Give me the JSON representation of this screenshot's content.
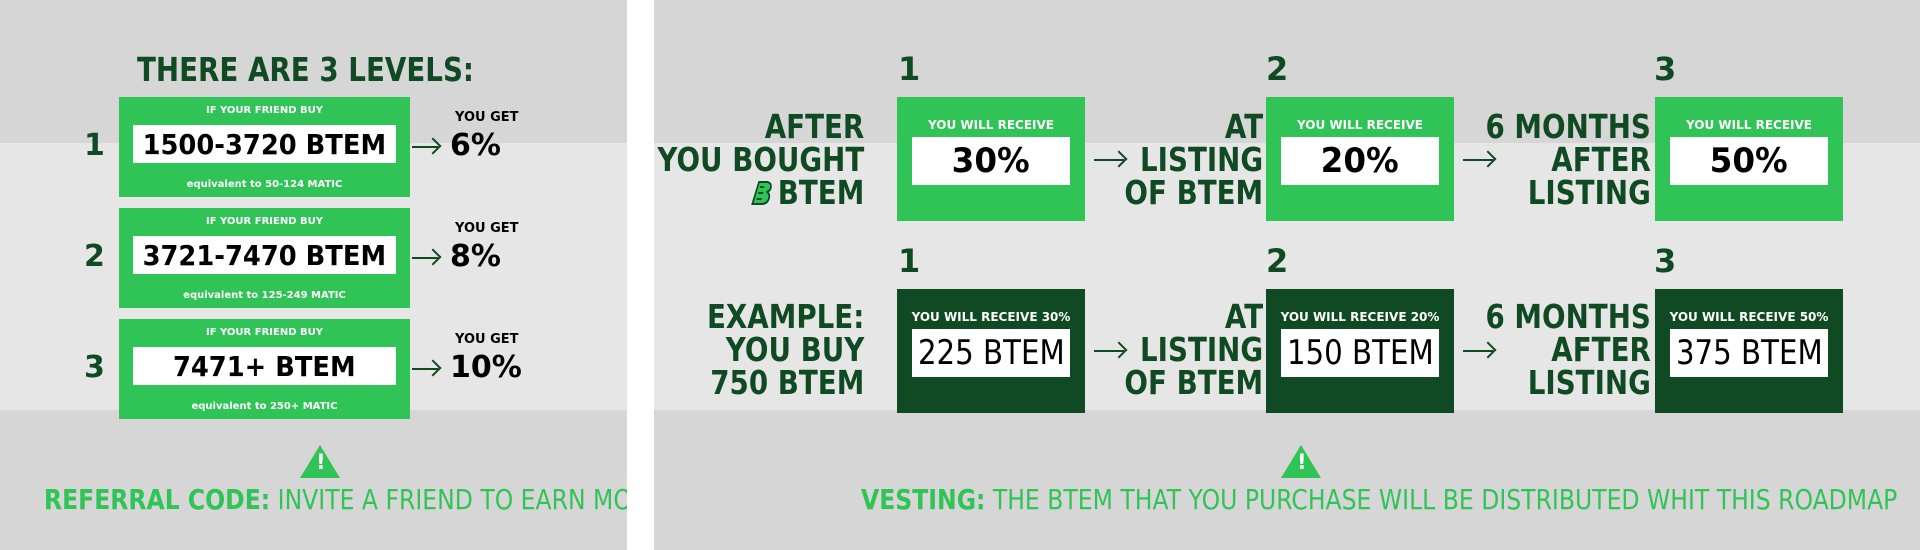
{
  "referral": {
    "title": "THERE ARE 3 LEVELS:",
    "levels": [
      {
        "number": "1",
        "caption": "IF YOUR FRIEND BUY",
        "amount": "1500-3720 BTEM",
        "equivalent": "equivalent to 50-124 MATIC",
        "you_get": "YOU GET",
        "percent": "6%"
      },
      {
        "number": "2",
        "caption": "IF YOUR FRIEND BUY",
        "amount": "3721-7470 BTEM",
        "equivalent": "equivalent to 125-249 MATIC",
        "you_get": "YOU GET",
        "percent": "8%"
      },
      {
        "number": "3",
        "caption": "IF YOUR FRIEND BUY",
        "amount": "7471+ BTEM",
        "equivalent": "equivalent to 250+ MATIC",
        "you_get": "YOU GET",
        "percent": "10%"
      }
    ],
    "footer_bold": "REFERRAL CODE:",
    "footer_text": "INVITE A FRIEND TO EARN MORE BTEM"
  },
  "vesting": {
    "steps": [
      "1",
      "2",
      "3"
    ],
    "row1": {
      "label_lines": [
        "AFTER",
        "YOU BOUGHT",
        "BTEM"
      ],
      "stage2_lines": [
        "AT",
        "LISTING",
        "OF BTEM"
      ],
      "stage3_lines": [
        "6 MONTHS",
        "AFTER",
        "LISTING"
      ],
      "boxes": [
        {
          "caption": "YOU WILL RECEIVE",
          "value": "30%"
        },
        {
          "caption": "YOU WILL RECEIVE",
          "value": "20%"
        },
        {
          "caption": "YOU WILL RECEIVE",
          "value": "50%"
        }
      ]
    },
    "row2": {
      "label_lines": [
        "EXAMPLE:",
        "YOU BUY",
        "750 BTEM"
      ],
      "stage2_lines": [
        "AT",
        "LISTING",
        "OF BTEM"
      ],
      "stage3_lines": [
        "6 MONTHS",
        "AFTER",
        "LISTING"
      ],
      "boxes": [
        {
          "caption": "YOU WILL RECEIVE 30%",
          "value": "225 BTEM"
        },
        {
          "caption": "YOU WILL RECEIVE 20%",
          "value": "150 BTEM"
        },
        {
          "caption": "YOU WILL RECEIVE 50%",
          "value": "375 BTEM"
        }
      ]
    },
    "footer_bold": "VESTING:",
    "footer_text": "THE BTEM THAT YOU PURCHASE WILL BE DISTRIBUTED WHIT THIS ROADMAP"
  },
  "icons": {
    "warning": "warning-triangle-icon",
    "arrow": "arrow-right-icon",
    "logo": "btem-logo-icon"
  },
  "colors": {
    "green": "#2fc455",
    "dark_green": "#0f4a23",
    "panel_gray": "#d6d6d6",
    "band_gray": "#e6e6e6"
  }
}
